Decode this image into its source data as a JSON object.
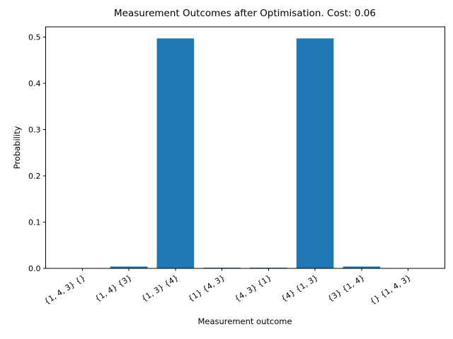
{
  "chart_data": {
    "type": "bar",
    "title": "Measurement Outcomes after Optimisation. Cost: 0.06",
    "xlabel": "Measurement outcome",
    "ylabel": "Probability",
    "categories": [
      "{1, 4, 3} {}",
      "{1, 4} {3}",
      "{1, 3} {4}",
      "{1} {4, 3}",
      "{4, 3} {1}",
      "{4} {1, 3}",
      "{3} {1, 4}",
      "{} {1, 4, 3}"
    ],
    "values": [
      0.0,
      0.004,
      0.497,
      0.001,
      0.001,
      0.497,
      0.004,
      0.0
    ],
    "ylim": [
      0.0,
      0.522
    ],
    "yticks": [
      0.0,
      0.1,
      0.2,
      0.3,
      0.4,
      0.5
    ],
    "bar_color": "#1f77b4",
    "axis_color": "#000000",
    "grid": false,
    "legend": null,
    "x_tick_rotation_deg": 33
  }
}
